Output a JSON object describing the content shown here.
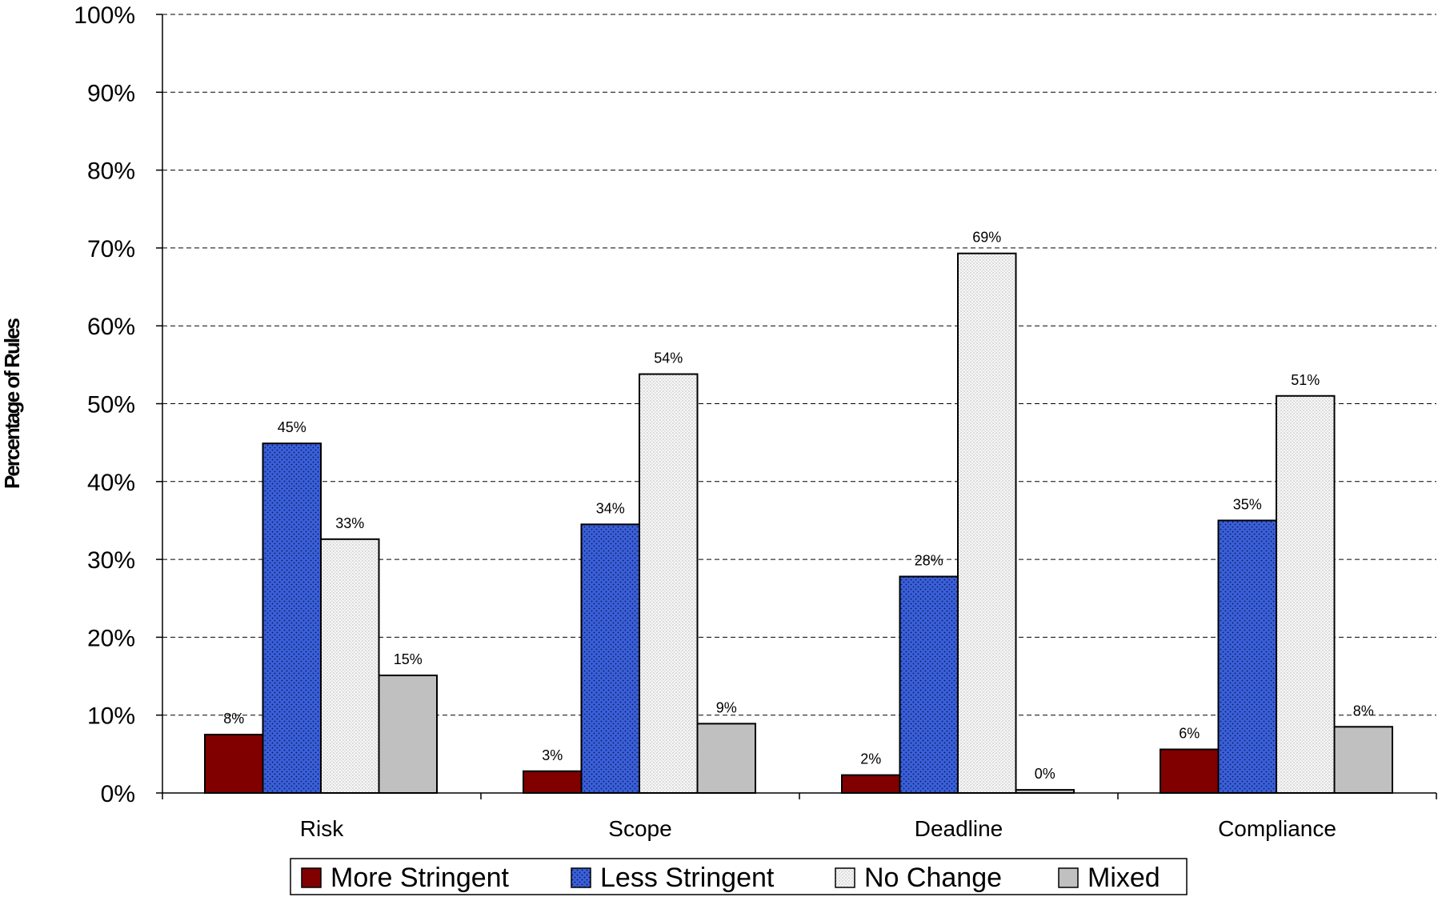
{
  "chart_data": {
    "type": "bar",
    "title": "",
    "xlabel": "",
    "ylabel": "Percentage of Rules",
    "categories": [
      "Risk",
      "Scope",
      "Deadline",
      "Compliance"
    ],
    "series": [
      {
        "name": "More Stringent",
        "values": [
          7.5,
          2.8,
          2.3,
          5.6
        ],
        "labels": [
          "8%",
          "3%",
          "2%",
          "6%"
        ],
        "color": "#800000",
        "pattern": "solid"
      },
      {
        "name": "Less Stringent",
        "values": [
          44.9,
          34.5,
          27.8,
          35.0
        ],
        "labels": [
          "45%",
          "34%",
          "28%",
          "35%"
        ],
        "color": "#3a5fd9",
        "pattern": "dots-dark"
      },
      {
        "name": "No Change",
        "values": [
          32.6,
          53.8,
          69.3,
          51.0
        ],
        "labels": [
          "33%",
          "54%",
          "69%",
          "51%"
        ],
        "color": "#f0f0f0",
        "pattern": "dots-light"
      },
      {
        "name": "Mixed",
        "values": [
          15.1,
          8.9,
          0.4,
          8.5
        ],
        "labels": [
          "15%",
          "9%",
          "0%",
          "8%"
        ],
        "color": "#c0c0c0",
        "pattern": "solid"
      }
    ],
    "ylim": [
      0,
      100
    ],
    "yticks": [
      0,
      10,
      20,
      30,
      40,
      50,
      60,
      70,
      80,
      90,
      100
    ],
    "ytick_labels": [
      "0%",
      "10%",
      "20%",
      "30%",
      "40%",
      "50%",
      "60%",
      "70%",
      "80%",
      "90%",
      "100%"
    ],
    "grid": "horizontal dashed",
    "legend_position": "bottom"
  }
}
